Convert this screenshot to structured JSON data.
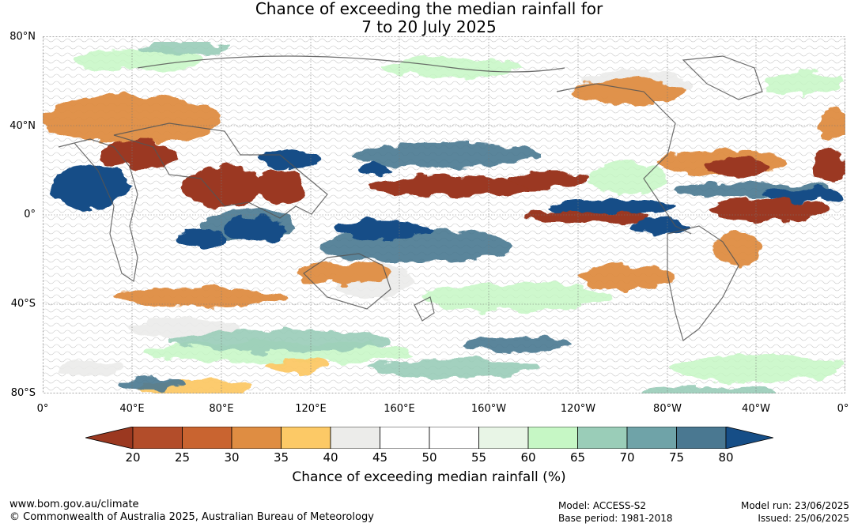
{
  "header": {
    "title_line1": "Chance of exceeding the median rainfall for",
    "title_line2": "7 to 20 July 2025"
  },
  "map": {
    "lat_labels": [
      "80°N",
      "40°N",
      "0°",
      "40°S",
      "80°S"
    ],
    "lon_labels": [
      "0°",
      "40°E",
      "80°E",
      "120°E",
      "160°E",
      "160°W",
      "120°W",
      "80°W",
      "40°W",
      "0°"
    ]
  },
  "legend": {
    "ticks": [
      "20",
      "25",
      "30",
      "35",
      "40",
      "45",
      "50",
      "55",
      "60",
      "65",
      "70",
      "75",
      "80"
    ],
    "colors": [
      "#9b3820",
      "#b34d2a",
      "#c96430",
      "#df8d42",
      "#fcc966",
      "#ececea",
      "#ffffff",
      "#ffffff",
      "#e8f5e6",
      "#c6f7c5",
      "#9acdb8",
      "#6fa3a8",
      "#4a7891",
      "#164e87"
    ],
    "label": "Chance of exceeding median rainfall (%)"
  },
  "footer": {
    "url": "www.bom.gov.au/climate",
    "copyright": "© Commonwealth of Australia 2025, Australian Bureau of Meteorology",
    "model": "Model: ACCESS-S2",
    "base_period": "Base period: 1981-2018",
    "model_run": "Model run: 23/06/2025",
    "issued": "Issued: 25/06/2025"
  }
}
